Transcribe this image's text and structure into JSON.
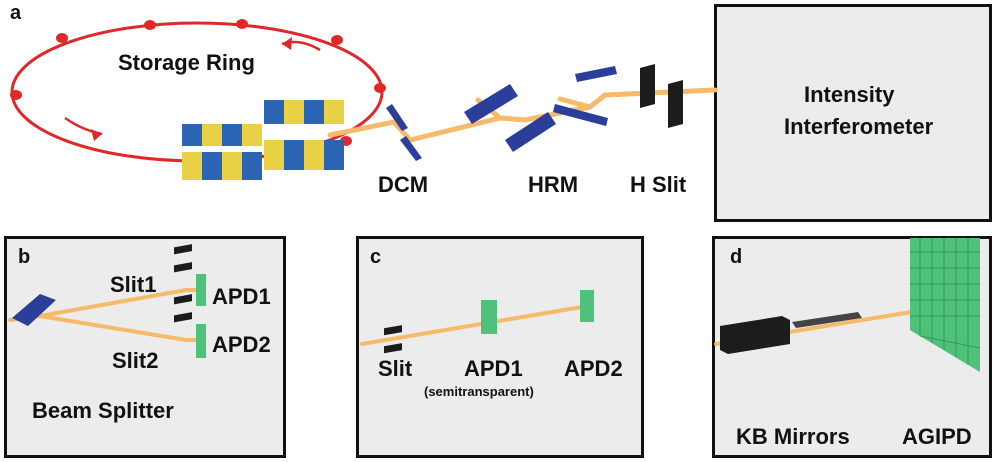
{
  "panels": {
    "a": {
      "letter": "a",
      "storage_ring": "Storage Ring",
      "dcm": "DCM",
      "hrm": "HRM",
      "h_slit": "H Slit",
      "interferometer_line1": "Intensity",
      "interferometer_line2": "Interferometer"
    },
    "b": {
      "letter": "b",
      "slit1": "Slit1",
      "slit2": "Slit2",
      "apd1": "APD1",
      "apd2": "APD2",
      "beam_splitter": "Beam Splitter"
    },
    "c": {
      "letter": "c",
      "slit": "Slit",
      "apd1": "APD1",
      "apd1_note": "(semitransparent)",
      "apd2": "APD2"
    },
    "d": {
      "letter": "d",
      "kb_mirrors": "KB Mirrors",
      "agipd": "AGIPD"
    }
  },
  "colors": {
    "ring": "#e0282a",
    "beam": "#f7b96a",
    "magnet_blue": "#2c64b4",
    "magnet_yellow": "#e9d246",
    "optic_blue": "#2b3f9a",
    "slit_black": "#1c1c1c",
    "apd_green": "#4fc17a",
    "panel_bg": "#ececec"
  }
}
